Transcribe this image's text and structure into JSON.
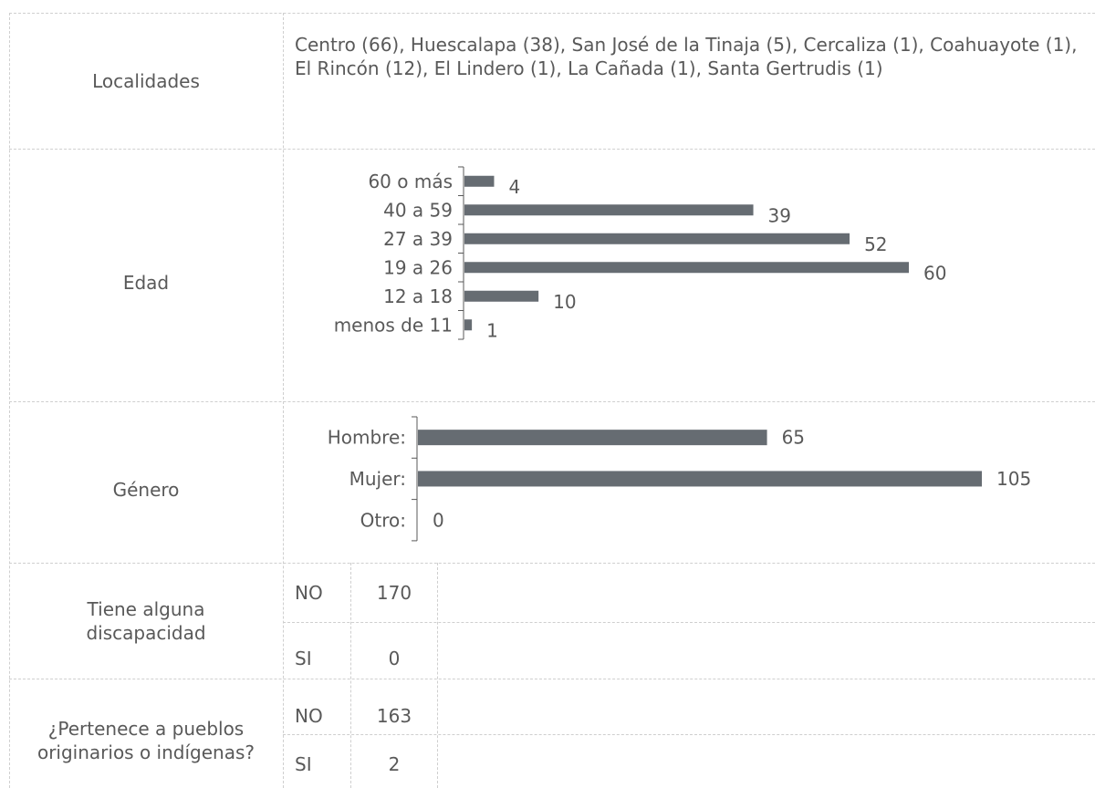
{
  "rows": {
    "localidades": {
      "label": "Localidades",
      "value": "Centro (66), Huescalapa (38), San José de la Tinaja (5), Cercaliza (1), Coahuayote (1), El Rincón (12), El Lindero (1), La Cañada (1), Santa Gertrudis (1)"
    },
    "edad": {
      "label": "Edad"
    },
    "genero": {
      "label": "Género"
    },
    "discapacidad": {
      "label": "Tiene alguna discapacidad",
      "options": [
        {
          "answer": "NO",
          "count": "170"
        },
        {
          "answer": "SI",
          "count": "0"
        }
      ]
    },
    "indigena": {
      "label": "¿Pertenece a pueblos originarios o indígenas?",
      "options": [
        {
          "answer": "NO",
          "count": "163"
        },
        {
          "answer": "SI",
          "count": "2"
        }
      ]
    }
  },
  "chart_data": [
    {
      "type": "bar",
      "orientation": "horizontal",
      "categories": [
        "60 o más",
        "40 a 59",
        "27 a 39",
        "19 a 26",
        "12 a 18",
        "menos de 11"
      ],
      "values": [
        4,
        39,
        52,
        60,
        10,
        1
      ],
      "data_labels": [
        "4",
        "39",
        "52",
        "60",
        "10",
        "1"
      ],
      "xlim": [
        0,
        60
      ],
      "bar_color": "#666c72"
    },
    {
      "type": "bar",
      "orientation": "horizontal",
      "categories": [
        "Hombre:",
        "Mujer:",
        "Otro:"
      ],
      "values": [
        65,
        105,
        0
      ],
      "data_labels": [
        "65",
        "105",
        "0"
      ],
      "xlim": [
        0,
        105
      ],
      "bar_color": "#666c72"
    }
  ]
}
